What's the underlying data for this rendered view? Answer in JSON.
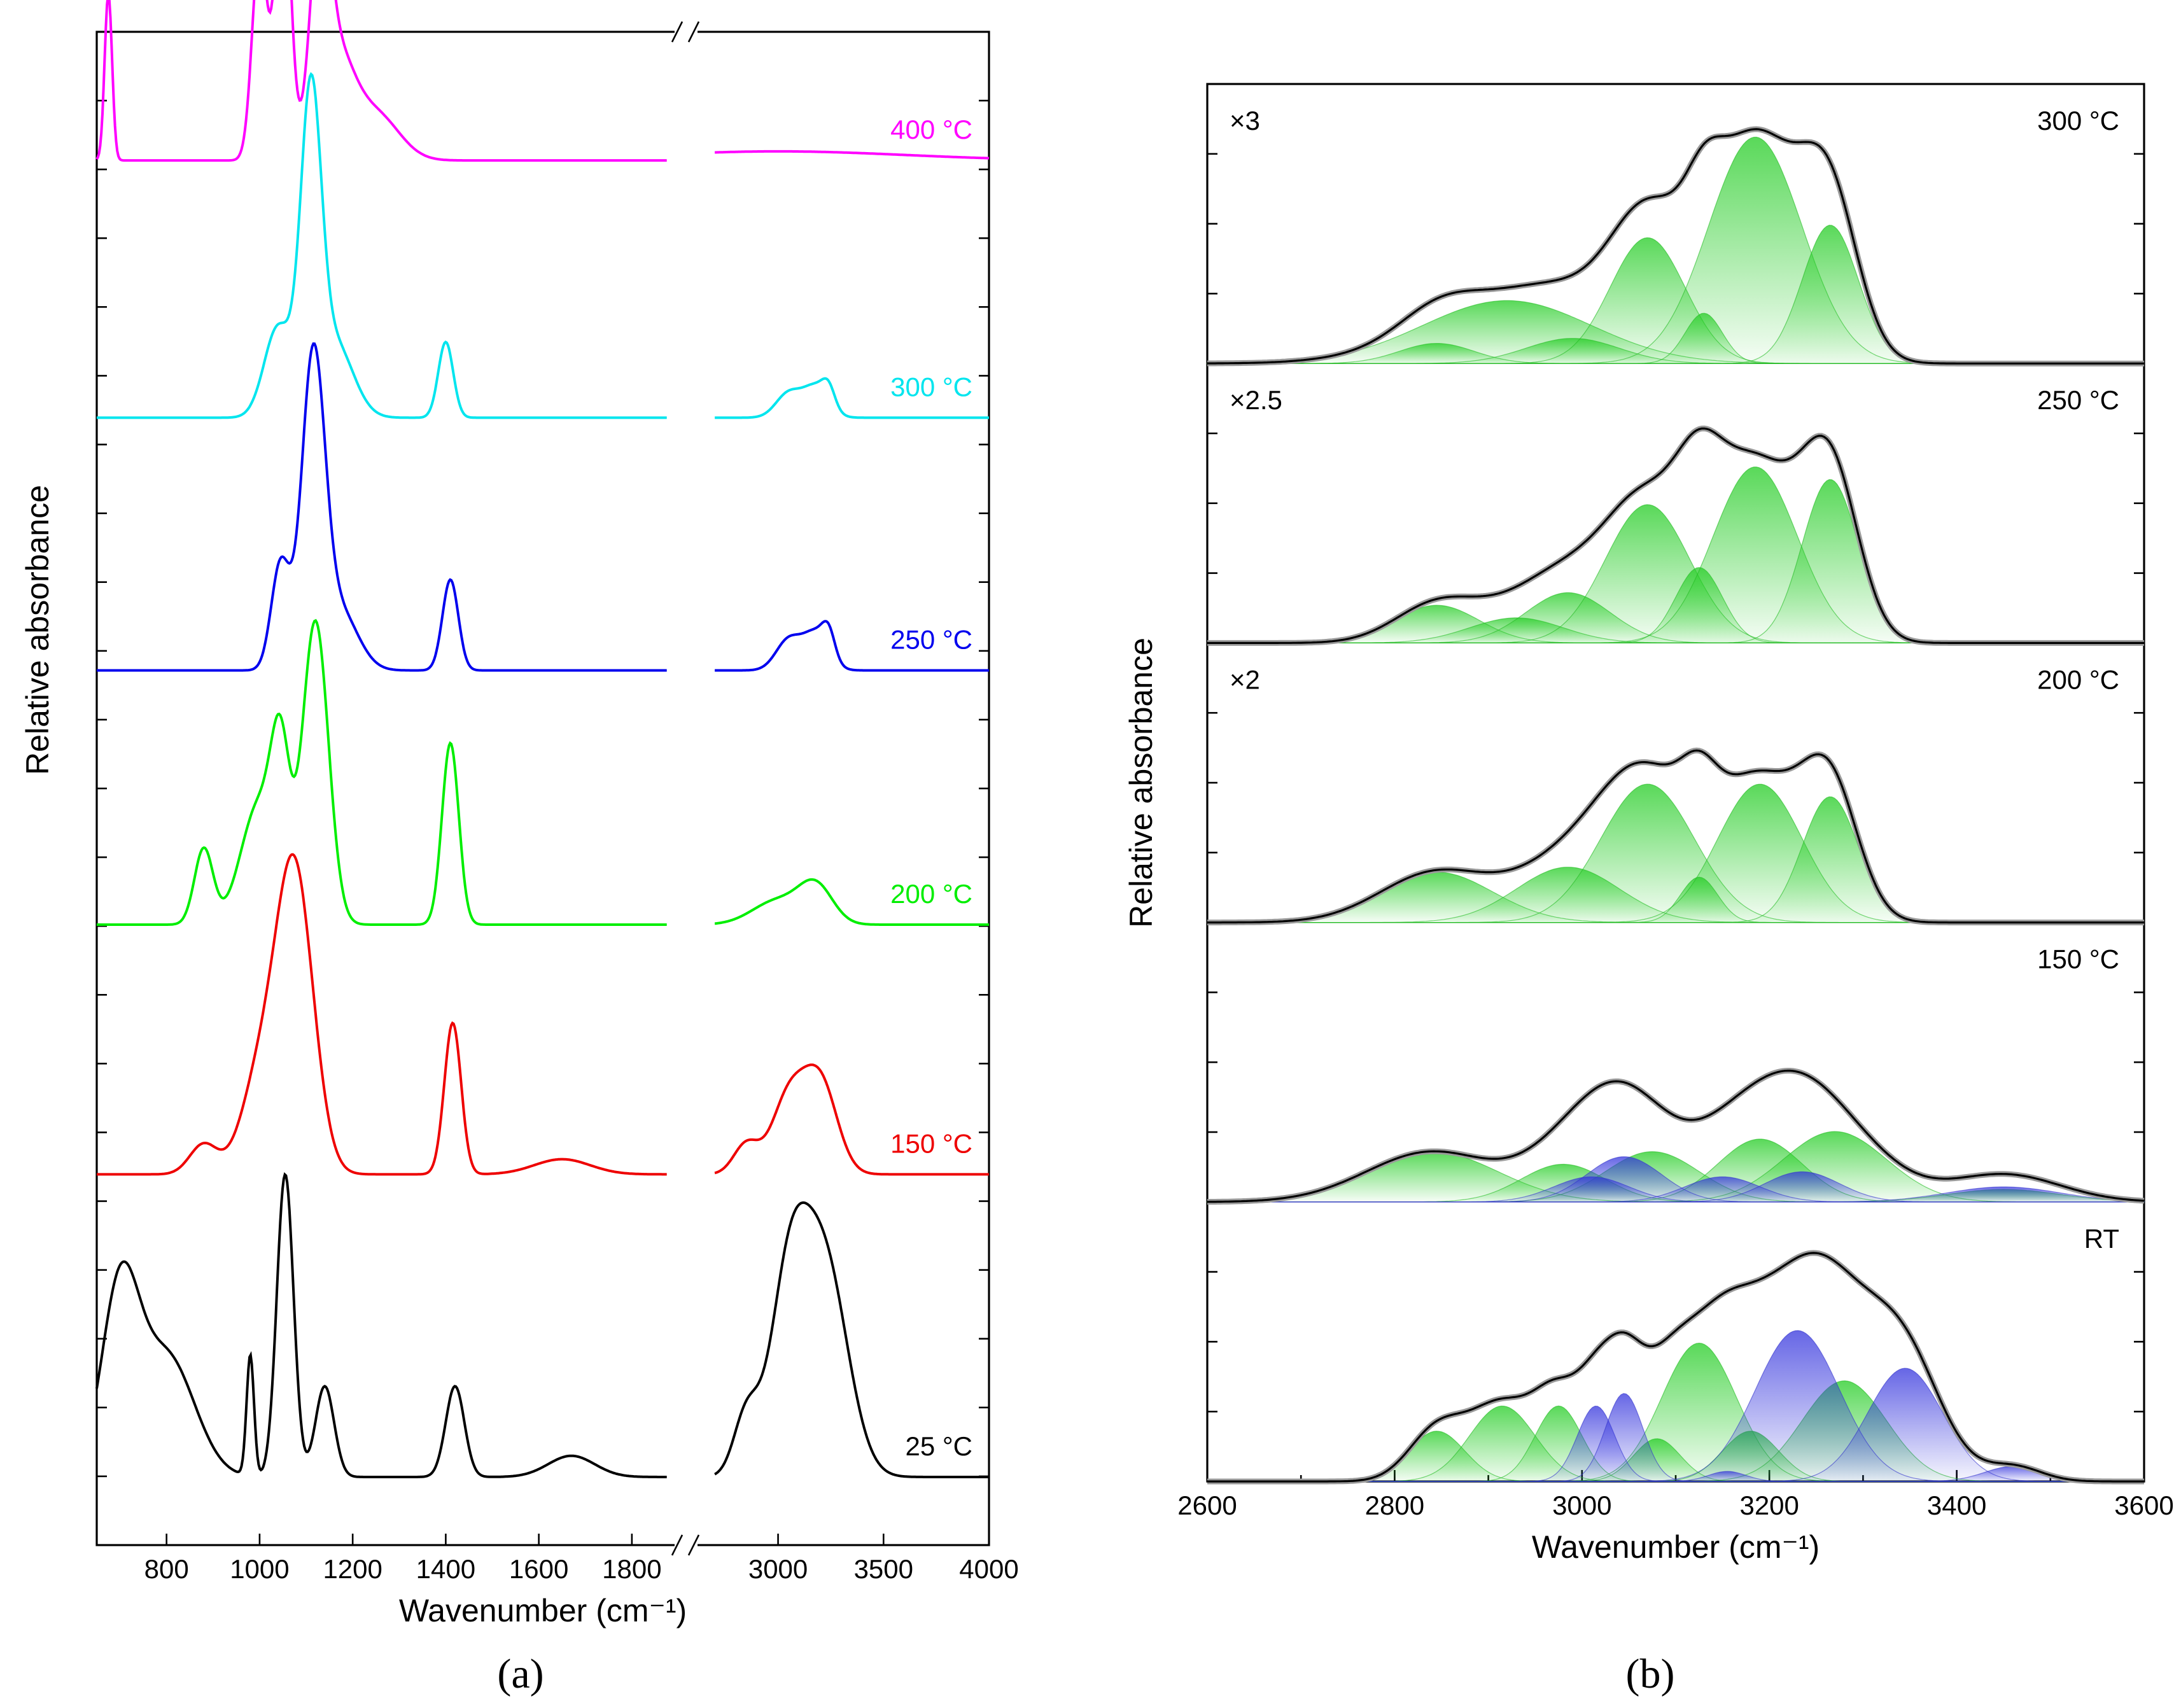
{
  "chart_data": [
    {
      "panel_label": "(a)",
      "type": "line",
      "xlabel": "Wavenumber (cm⁻¹)",
      "ylabel": "Relative absorbance",
      "x_ticks_left": [
        800,
        1000,
        1200,
        1400,
        1600,
        1800
      ],
      "x_ticks_right": [
        3000,
        3500,
        4000
      ],
      "xlim_left": [
        650,
        1900
      ],
      "xlim_right": [
        2600,
        4000
      ],
      "axis_break": true,
      "series": [
        {
          "name": "400 °C",
          "color": "#ff00ff",
          "baseline": 0.915,
          "peaks_left": [
            [
              675,
              0.55,
              8
            ],
            [
              1000,
              0.7,
              16
            ],
            [
              1050,
              1.0,
              16
            ],
            [
              1130,
              0.62,
              20
            ],
            [
              1160,
              0.35,
              40
            ],
            [
              1250,
              0.15,
              50
            ]
          ],
          "peaks_right": [
            [
              3000,
              0.03,
              600
            ]
          ]
        },
        {
          "name": "300 °C",
          "color": "#00e5ee",
          "baseline": 0.745,
          "peaks_left": [
            [
              1040,
              0.3,
              30
            ],
            [
              1110,
              1.0,
              22
            ],
            [
              1160,
              0.25,
              40
            ],
            [
              1400,
              0.25,
              16
            ]
          ],
          "peaks_right": [
            [
              3050,
              0.08,
              60
            ],
            [
              3180,
              0.1,
              60
            ],
            [
              3240,
              0.06,
              30
            ]
          ]
        },
        {
          "name": "250 °C",
          "color": "#0000ee",
          "baseline": 0.578,
          "peaks_left": [
            [
              1045,
              0.35,
              20
            ],
            [
              1115,
              1.0,
              25
            ],
            [
              1170,
              0.2,
              40
            ],
            [
              1410,
              0.3,
              17
            ]
          ],
          "peaks_right": [
            [
              3050,
              0.1,
              60
            ],
            [
              3180,
              0.12,
              60
            ],
            [
              3240,
              0.08,
              30
            ]
          ]
        },
        {
          "name": "200 °C",
          "color": "#00ee00",
          "baseline": 0.41,
          "peaks_left": [
            [
              880,
              0.25,
              20
            ],
            [
              1000,
              0.4,
              40
            ],
            [
              1045,
              0.45,
              20
            ],
            [
              1120,
              1.0,
              28
            ],
            [
              1410,
              0.6,
              18
            ]
          ],
          "peaks_right": [
            [
              3000,
              0.08,
              120
            ],
            [
              3180,
              0.12,
              80
            ]
          ]
        },
        {
          "name": "150 °C",
          "color": "#ee0000",
          "baseline": 0.245,
          "peaks_left": [
            [
              880,
              0.1,
              30
            ],
            [
              1000,
              0.3,
              40
            ],
            [
              1075,
              1.0,
              40
            ],
            [
              1415,
              0.5,
              18
            ],
            [
              1650,
              0.05,
              60
            ]
          ],
          "peaks_right": [
            [
              2850,
              0.1,
              60
            ],
            [
              3050,
              0.25,
              80
            ],
            [
              3200,
              0.3,
              80
            ]
          ]
        },
        {
          "name": "25 °C",
          "color": "#000000",
          "baseline": 0.045,
          "peaks_left": [
            [
              700,
              0.6,
              40
            ],
            [
              800,
              0.4,
              60
            ],
            [
              980,
              0.4,
              8
            ],
            [
              1055,
              1.0,
              18
            ],
            [
              1140,
              0.3,
              20
            ],
            [
              1420,
              0.3,
              20
            ],
            [
              1670,
              0.07,
              50
            ]
          ],
          "peaks_right": [
            [
              2850,
              0.2,
              60
            ],
            [
              3050,
              0.6,
              90
            ],
            [
              3220,
              0.7,
              110
            ]
          ]
        }
      ]
    },
    {
      "panel_label": "(b)",
      "type": "line",
      "xlabel": "Wavenumber (cm⁻¹)",
      "ylabel": "Relative absorbance",
      "xlim": [
        2600,
        3600
      ],
      "x_ticks": [
        2600,
        2800,
        3000,
        3200,
        3400,
        3600
      ],
      "series": [
        {
          "name": "300 °C",
          "multiplier": "×3",
          "green_components": [
            [
              2845,
              0.08,
              40
            ],
            [
              2920,
              0.25,
              90
            ],
            [
              2990,
              0.1,
              50
            ],
            [
              3070,
              0.5,
              40
            ],
            [
              3130,
              0.2,
              20
            ],
            [
              3185,
              0.9,
              50
            ],
            [
              3265,
              0.55,
              30
            ]
          ],
          "blue_components": []
        },
        {
          "name": "250 °C",
          "multiplier": "×2.5",
          "green_components": [
            [
              2845,
              0.15,
              45
            ],
            [
              2930,
              0.1,
              50
            ],
            [
              2985,
              0.2,
              45
            ],
            [
              3070,
              0.55,
              45
            ],
            [
              3125,
              0.3,
              25
            ],
            [
              3185,
              0.7,
              45
            ],
            [
              3265,
              0.65,
              30
            ]
          ],
          "blue_components": []
        },
        {
          "name": "200 °C",
          "multiplier": "×2",
          "green_components": [
            [
              2845,
              0.2,
              60
            ],
            [
              2985,
              0.22,
              55
            ],
            [
              3070,
              0.55,
              50
            ],
            [
              3125,
              0.18,
              20
            ],
            [
              3190,
              0.55,
              45
            ],
            [
              3265,
              0.5,
              30
            ]
          ],
          "blue_components": []
        },
        {
          "name": "150 °C",
          "multiplier": "",
          "green_components": [
            [
              2840,
              0.2,
              70
            ],
            [
              2980,
              0.15,
              45
            ],
            [
              3075,
              0.2,
              50
            ],
            [
              3190,
              0.25,
              45
            ],
            [
              3270,
              0.28,
              55
            ],
            [
              3450,
              0.05,
              60
            ]
          ],
          "blue_components": [
            [
              3010,
              0.1,
              40
            ],
            [
              3045,
              0.18,
              40
            ],
            [
              3150,
              0.1,
              40
            ],
            [
              3235,
              0.12,
              40
            ],
            [
              3450,
              0.06,
              60
            ]
          ]
        },
        {
          "name": "RT",
          "multiplier": "",
          "green_components": [
            [
              2845,
              0.2,
              30
            ],
            [
              2915,
              0.3,
              35
            ],
            [
              2975,
              0.3,
              25
            ],
            [
              3080,
              0.17,
              25
            ],
            [
              3125,
              0.55,
              40
            ],
            [
              3180,
              0.2,
              30
            ],
            [
              3280,
              0.4,
              45
            ]
          ],
          "blue_components": [
            [
              3015,
              0.3,
              20
            ],
            [
              3045,
              0.35,
              20
            ],
            [
              3155,
              0.04,
              20
            ],
            [
              3230,
              0.6,
              45
            ],
            [
              3345,
              0.45,
              40
            ],
            [
              3460,
              0.06,
              30
            ]
          ]
        }
      ]
    }
  ]
}
